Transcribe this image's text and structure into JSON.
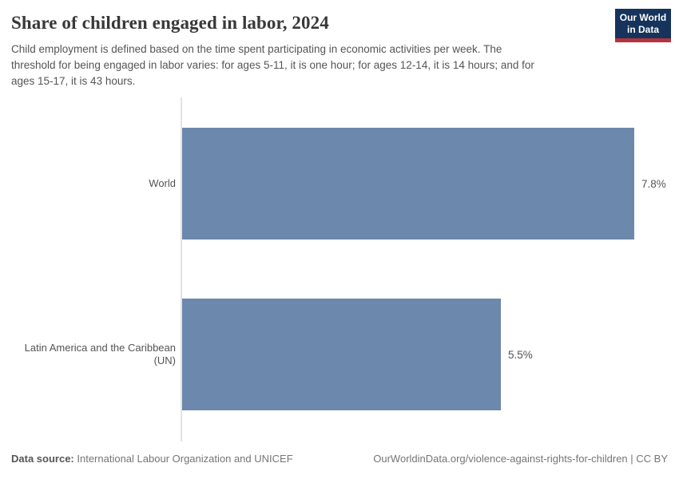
{
  "header": {
    "title": "Share of children engaged in labor, 2024",
    "subtitle_lines": [
      "Child employment is defined based on the time spent participating in economic activities per week. The",
      "threshold for being engaged in labor varies: for ages 5-11, it is one hour; for ages 12-14, it is 14 hours; and for",
      "ages 15-17, it is 43 hours."
    ],
    "logo_line1": "Our World",
    "logo_line2": "in Data"
  },
  "chart_data": {
    "type": "bar",
    "orientation": "horizontal",
    "title": "Share of children engaged in labor, 2024",
    "categories": [
      "World",
      "Latin America and the Caribbean (UN)"
    ],
    "values": [
      7.8,
      5.5
    ],
    "value_labels": [
      "7.8%",
      "5.5%"
    ],
    "unit": "%",
    "xlim": [
      0,
      7.8
    ],
    "grid": false,
    "legend": false,
    "bar_color": "#6d88ad"
  },
  "footer": {
    "datasource_label": "Data source:",
    "datasource_value": "International Labour Organization and UNICEF",
    "credit": "OurWorldinData.org/violence-against-rights-for-children | CC BY"
  },
  "colors": {
    "bar": "#6d88ad",
    "axis_line": "#e3e3e3",
    "title_text": "#383838",
    "body_text": "#555555",
    "footer_text": "#757575",
    "logo_bg": "#16335b",
    "logo_accent": "#b5323f"
  }
}
